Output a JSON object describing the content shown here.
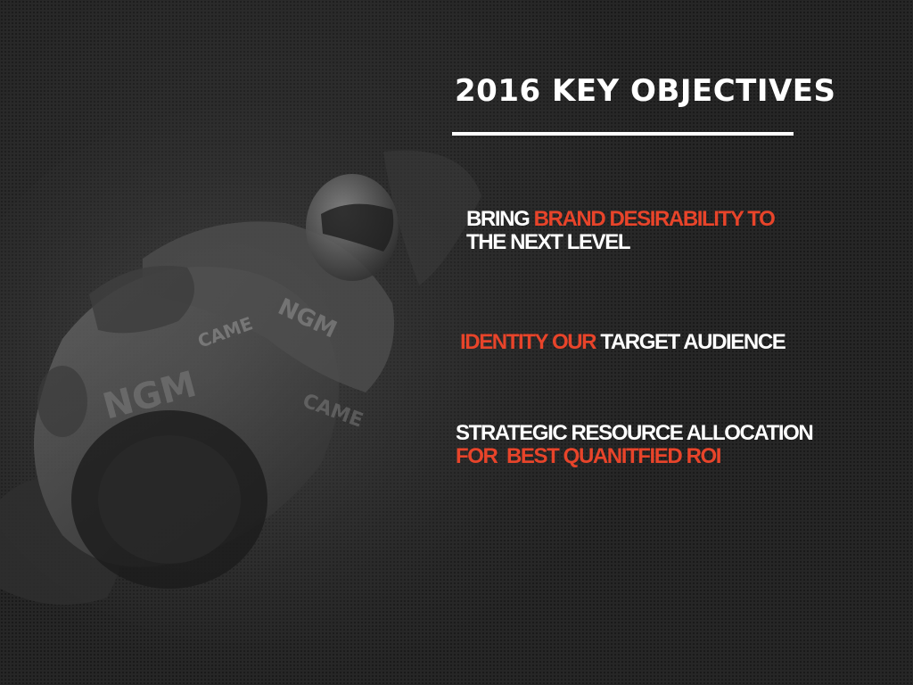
{
  "colors": {
    "background": "#262626",
    "text": "#ffffff",
    "accent": "#e8442a"
  },
  "background_image": "motorcycle-racer-photo",
  "title": "2016 KEY OBJECTIVES",
  "objectives": [
    {
      "line1_plain": "BRING",
      "line1_accent": "BRAND DESIRABILITY TO",
      "line2_plain": "THE NEXT LEVEL"
    },
    {
      "accent": "IDENTITY OUR",
      "plain": "TARGET AUDIENCE"
    },
    {
      "line1_plain": "STRATEGIC RESOURCE ALLOCATION",
      "line2_accent": "FOR  BEST QUANITFIED ROI"
    }
  ]
}
